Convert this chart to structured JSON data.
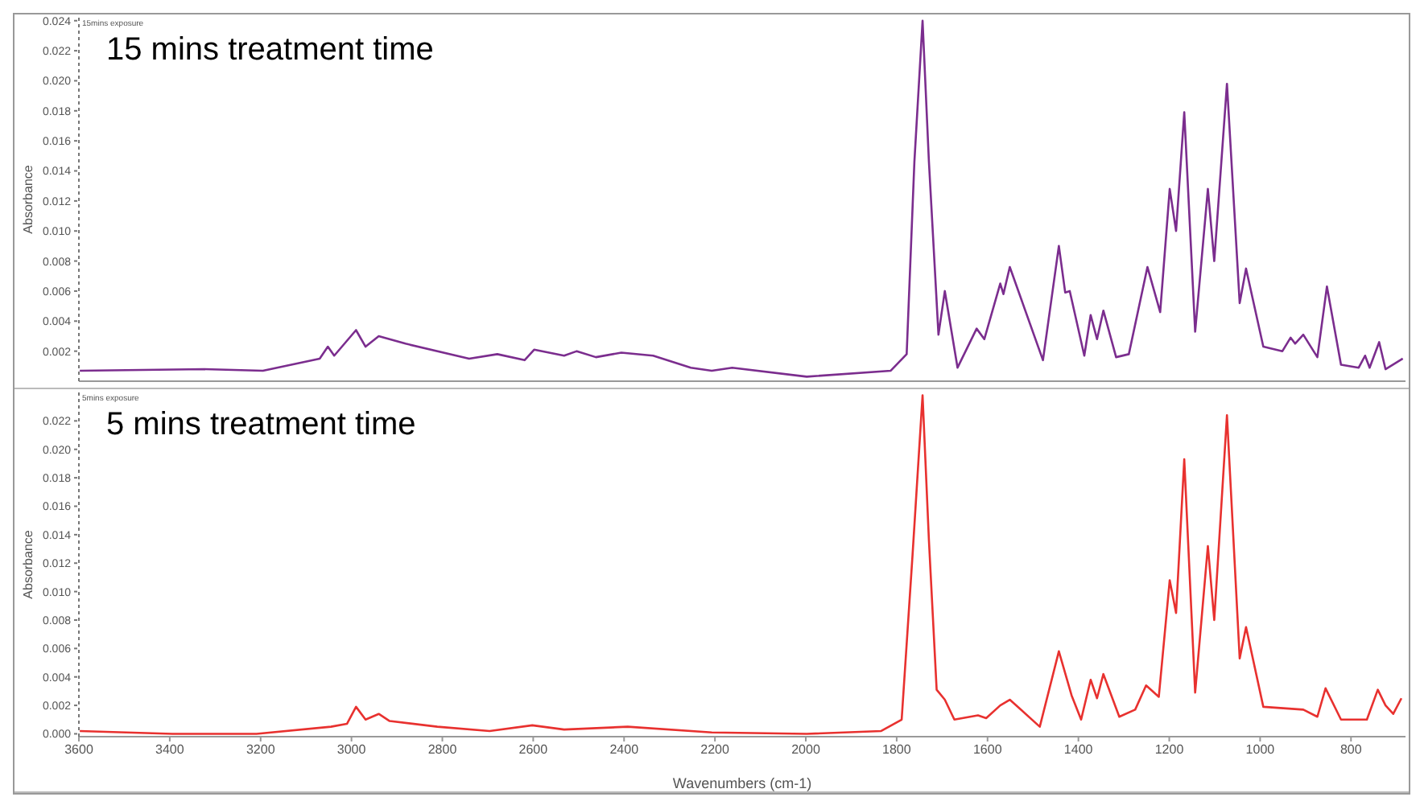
{
  "chart_data": [
    {
      "type": "line",
      "title": "15 mins treatment time",
      "annotations": [
        "15mins exposure"
      ],
      "ylabel": "Absorbance",
      "xlim": [
        3600,
        680
      ],
      "xticks": [
        3600,
        3400,
        3200,
        3000,
        2800,
        2600,
        2400,
        2200,
        2000,
        1800,
        1600,
        1400,
        1200,
        1000,
        800
      ],
      "ylim": [
        0,
        0.0242
      ],
      "yticks": [
        {
          "value": 0.002,
          "label": "0.002"
        },
        {
          "value": 0.004,
          "label": "0.004"
        },
        {
          "value": 0.006,
          "label": "0.006"
        },
        {
          "value": 0.008,
          "label": "0.008"
        },
        {
          "value": 0.01,
          "label": "0.010"
        },
        {
          "value": 0.012,
          "label": "0.012"
        },
        {
          "value": 0.014,
          "label": "0.014"
        },
        {
          "value": 0.016,
          "label": "0.016"
        },
        {
          "value": 0.018,
          "label": "0.018"
        },
        {
          "value": 0.02,
          "label": "0.020"
        },
        {
          "value": 0.022,
          "label": "0.022"
        },
        {
          "value": 0.024,
          "label": "0.024"
        }
      ],
      "tick_labels": "y",
      "marker": "none",
      "line_style": "solid",
      "series": [
        {
          "color": "#7b2d8e",
          "x": [
            3598,
            3324,
            3195,
            3070,
            3052,
            3038,
            2990,
            2969,
            2940,
            2881,
            2741,
            2679,
            2619,
            2598,
            2532,
            2504,
            2462,
            2406,
            2336,
            2253,
            2207,
            2162,
            1998,
            1813,
            1778,
            1761,
            1743,
            1729,
            1708,
            1694,
            1666,
            1624,
            1607,
            1572,
            1565,
            1551,
            1478,
            1443,
            1429,
            1419,
            1387,
            1373,
            1359,
            1345,
            1317,
            1289,
            1248,
            1220,
            1199,
            1185,
            1167,
            1143,
            1115,
            1101,
            1073,
            1045,
            1031,
            993,
            951,
            933,
            923,
            905,
            874,
            853,
            822,
            783,
            769,
            759,
            738,
            724,
            686
          ],
          "values": [
            0.0007,
            0.0008,
            0.0007,
            0.0015,
            0.0023,
            0.0017,
            0.0034,
            0.0023,
            0.003,
            0.0025,
            0.0015,
            0.0018,
            0.0014,
            0.0021,
            0.0017,
            0.002,
            0.0016,
            0.0019,
            0.0017,
            0.0009,
            0.0007,
            0.0009,
            0.0003,
            0.0007,
            0.0018,
            0.0146,
            0.024,
            0.0146,
            0.0031,
            0.006,
            0.0009,
            0.0035,
            0.0028,
            0.0065,
            0.0058,
            0.0076,
            0.0014,
            0.009,
            0.0059,
            0.006,
            0.0017,
            0.0044,
            0.0028,
            0.0047,
            0.0016,
            0.0018,
            0.0076,
            0.0046,
            0.0128,
            0.01,
            0.0179,
            0.0033,
            0.0128,
            0.008,
            0.0198,
            0.0052,
            0.0075,
            0.0023,
            0.002,
            0.0029,
            0.0025,
            0.0031,
            0.0016,
            0.0063,
            0.0011,
            0.0009,
            0.0017,
            0.0009,
            0.0026,
            0.0008,
            0.0015
          ]
        }
      ]
    },
    {
      "type": "line",
      "title": "5 mins treatment time",
      "annotations": [
        "5mins exposure"
      ],
      "ylabel": "Absorbance",
      "xlabel": "Wavenumbers (cm-1)",
      "xlim": [
        3600,
        680
      ],
      "xticks": [
        3600,
        3400,
        3200,
        3000,
        2800,
        2600,
        2400,
        2200,
        2000,
        1800,
        1600,
        1400,
        1200,
        1000,
        800
      ],
      "ylim": [
        -0.0002,
        0.024
      ],
      "yticks": [
        {
          "value": 0,
          "label": "0.000"
        },
        {
          "value": 0.002,
          "label": "0.002"
        },
        {
          "value": 0.004,
          "label": "0.004"
        },
        {
          "value": 0.006,
          "label": "0.006"
        },
        {
          "value": 0.008,
          "label": "0.008"
        },
        {
          "value": 0.01,
          "label": "0.010"
        },
        {
          "value": 0.012,
          "label": "0.012"
        },
        {
          "value": 0.014,
          "label": "0.014"
        },
        {
          "value": 0.016,
          "label": "0.016"
        },
        {
          "value": 0.018,
          "label": "0.018"
        },
        {
          "value": 0.02,
          "label": "0.020"
        },
        {
          "value": 0.022,
          "label": "0.022"
        }
      ],
      "marker": "none",
      "line_style": "solid",
      "series": [
        {
          "color": "#e8312f",
          "x": [
            3598,
            3394,
            3209,
            3045,
            3010,
            2990,
            2969,
            2940,
            2916,
            2811,
            2696,
            2602,
            2532,
            2392,
            2207,
            1998,
            1834,
            1789,
            1765,
            1743,
            1729,
            1712,
            1694,
            1673,
            1621,
            1603,
            1572,
            1551,
            1485,
            1443,
            1415,
            1394,
            1373,
            1359,
            1345,
            1310,
            1275,
            1251,
            1223,
            1199,
            1185,
            1167,
            1143,
            1115,
            1101,
            1073,
            1045,
            1031,
            993,
            905,
            874,
            856,
            822,
            765,
            741,
            724,
            707,
            689
          ],
          "values": [
            0.0002,
            0,
            0,
            0.0005,
            0.0007,
            0.0019,
            0.001,
            0.0014,
            0.0009,
            0.0005,
            0.0002,
            0.0006,
            0.0003,
            0.0005,
            0.0001,
            0,
            0.0002,
            0.001,
            0.0126,
            0.0238,
            0.0136,
            0.0031,
            0.0024,
            0.001,
            0.0013,
            0.0011,
            0.002,
            0.0024,
            0.0005,
            0.0058,
            0.0027,
            0.001,
            0.0038,
            0.0025,
            0.0042,
            0.0012,
            0.0017,
            0.0034,
            0.0026,
            0.0108,
            0.0085,
            0.0193,
            0.0029,
            0.0132,
            0.008,
            0.0224,
            0.0053,
            0.0075,
            0.0019,
            0.0017,
            0.0012,
            0.0032,
            0.001,
            0.001,
            0.0031,
            0.002,
            0.0014,
            0.0025
          ]
        }
      ]
    }
  ]
}
